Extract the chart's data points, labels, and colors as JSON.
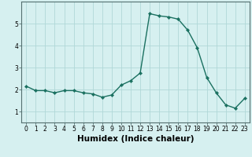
{
  "title": "",
  "xlabel": "Humidex (Indice chaleur)",
  "x": [
    0,
    1,
    2,
    3,
    4,
    5,
    6,
    7,
    8,
    9,
    10,
    11,
    12,
    13,
    14,
    15,
    16,
    17,
    18,
    19,
    20,
    21,
    22,
    23
  ],
  "y": [
    2.15,
    1.95,
    1.95,
    1.85,
    1.95,
    1.95,
    1.85,
    1.8,
    1.65,
    1.75,
    2.2,
    2.4,
    2.75,
    5.45,
    5.35,
    5.3,
    5.2,
    4.7,
    3.9,
    2.55,
    1.85,
    1.3,
    1.15,
    1.6
  ],
  "line_color": "#1a7060",
  "marker": "D",
  "marker_size": 2.2,
  "line_width": 1.0,
  "bg_color": "#d6f0f0",
  "grid_color": "#b0d8d8",
  "ylim": [
    0.5,
    6.0
  ],
  "xlim": [
    -0.5,
    23.5
  ],
  "yticks": [
    1,
    2,
    3,
    4,
    5
  ],
  "xticks": [
    0,
    1,
    2,
    3,
    4,
    5,
    6,
    7,
    8,
    9,
    10,
    11,
    12,
    13,
    14,
    15,
    16,
    17,
    18,
    19,
    20,
    21,
    22,
    23
  ],
  "tick_fontsize": 5.5,
  "xlabel_fontsize": 7.5,
  "axis_color": "#557070"
}
